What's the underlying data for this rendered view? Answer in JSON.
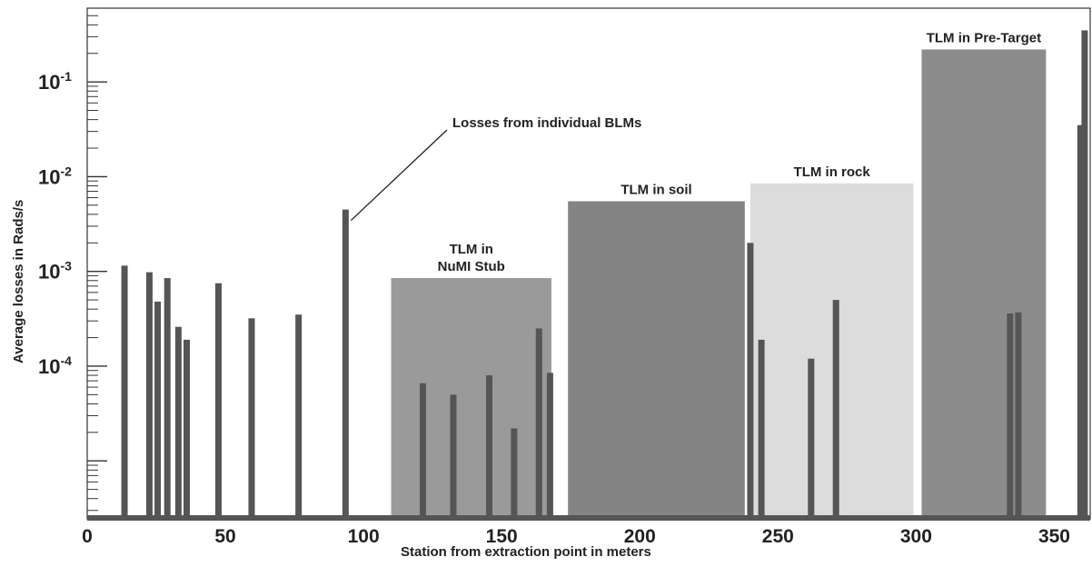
{
  "chart_data": {
    "type": "bar",
    "xlabel": "Station from extraction point in meters",
    "ylabel": "Average losses in Rads/s",
    "x_ticks": [
      0,
      50,
      100,
      150,
      200,
      250,
      300,
      350
    ],
    "y_ticks": [
      {
        "value": 0.0001,
        "base": "10",
        "exp": "-4"
      },
      {
        "value": 0.001,
        "base": "10",
        "exp": "-3"
      },
      {
        "value": 0.01,
        "base": "10",
        "exp": "-2"
      },
      {
        "value": 0.1,
        "base": "10",
        "exp": "-1"
      }
    ],
    "xlim": [
      0,
      363
    ],
    "ylim": [
      2.5e-06,
      0.6
    ],
    "ylog": true,
    "regions": [
      {
        "name": "TLM in NuMI Stub",
        "label_lines": [
          "TLM in",
          "NuMI Stub"
        ],
        "x0": 110,
        "x1": 168,
        "value": 0.00085,
        "color": "#9a9a9a"
      },
      {
        "name": "TLM in soil",
        "label_lines": [
          "TLM in soil"
        ],
        "x0": 174,
        "x1": 238,
        "value": 0.0055,
        "color": "#848484"
      },
      {
        "name": "TLM in rock",
        "label_lines": [
          "TLM in rock"
        ],
        "x0": 240,
        "x1": 299,
        "value": 0.0085,
        "color": "#dcdcdc"
      },
      {
        "name": "TLM in Pre-Target",
        "label_lines": [
          "TLM in Pre-Target"
        ],
        "x0": 302,
        "x1": 347,
        "value": 0.22,
        "color": "#8c8c8c"
      }
    ],
    "series": [
      {
        "name": "Losses from individual BLMs",
        "color": "#555555",
        "points": [
          {
            "x": 13.5,
            "y": 0.00115
          },
          {
            "x": 22.5,
            "y": 0.00098
          },
          {
            "x": 25.5,
            "y": 0.00048
          },
          {
            "x": 29,
            "y": 0.00085
          },
          {
            "x": 33,
            "y": 0.00026
          },
          {
            "x": 36,
            "y": 0.00019
          },
          {
            "x": 47.5,
            "y": 0.00075
          },
          {
            "x": 59.5,
            "y": 0.00032
          },
          {
            "x": 76.5,
            "y": 0.00035
          },
          {
            "x": 93.5,
            "y": 0.0045
          },
          {
            "x": 121.5,
            "y": 6.6e-05
          },
          {
            "x": 132.5,
            "y": 5e-05
          },
          {
            "x": 145.5,
            "y": 8e-05
          },
          {
            "x": 154.5,
            "y": 2.2e-05
          },
          {
            "x": 163.5,
            "y": 0.00025
          },
          {
            "x": 167.5,
            "y": 8.5e-05
          },
          {
            "x": 240,
            "y": 0.002
          },
          {
            "x": 244,
            "y": 0.00019
          },
          {
            "x": 262,
            "y": 0.00012
          },
          {
            "x": 271,
            "y": 0.0005
          },
          {
            "x": 334,
            "y": 0.00036
          },
          {
            "x": 337,
            "y": 0.00037
          },
          {
            "x": 359.5,
            "y": 0.035
          },
          {
            "x": 361,
            "y": 0.35
          }
        ]
      }
    ],
    "annotations": [
      {
        "text": "Losses from individual BLMs",
        "points_to_x": 93.5,
        "points_to_y": 0.0045
      }
    ]
  }
}
